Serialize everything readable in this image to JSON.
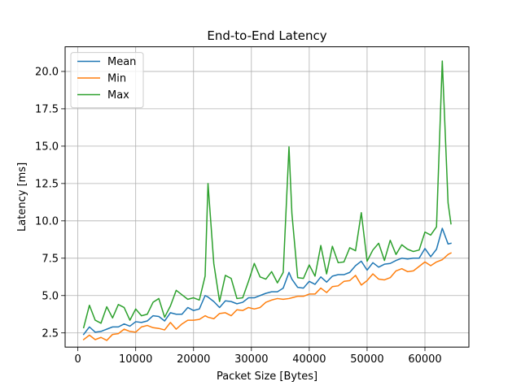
{
  "chart_data": {
    "type": "line",
    "title": "End-to-End Latency",
    "xlabel": "Packet Size [Bytes]",
    "ylabel": "Latency [ms]",
    "xlim": [
      -2200,
      67600
    ],
    "ylim": [
      1.55,
      21.65
    ],
    "xticks": [
      0,
      10000,
      20000,
      30000,
      40000,
      50000,
      60000
    ],
    "xtick_labels": [
      "0",
      "10000",
      "20000",
      "30000",
      "40000",
      "50000",
      "60000"
    ],
    "yticks": [
      2.5,
      5.0,
      7.5,
      10.0,
      12.5,
      15.0,
      17.5,
      20.0
    ],
    "ytick_labels": [
      "2.5",
      "5.0",
      "7.5",
      "10.0",
      "12.5",
      "15.0",
      "17.5",
      "20.0"
    ],
    "grid": true,
    "legend_position": "top-left",
    "x": [
      1000,
      2000,
      3000,
      4000,
      5000,
      6000,
      7000,
      8000,
      9000,
      10000,
      11000,
      12000,
      13000,
      14000,
      15000,
      16000,
      17000,
      18000,
      19000,
      20000,
      21000,
      22000,
      22500,
      23500,
      24500,
      25500,
      26500,
      27500,
      28500,
      29500,
      30500,
      31500,
      32500,
      33500,
      34500,
      35500,
      36500,
      37000,
      38000,
      39000,
      40000,
      41000,
      42000,
      43000,
      44000,
      45000,
      46000,
      47000,
      48000,
      49000,
      50000,
      51000,
      52000,
      53000,
      54000,
      55000,
      56000,
      57000,
      58000,
      59000,
      60000,
      61000,
      62000,
      63000,
      64000,
      64500
    ],
    "series": [
      {
        "name": "Mean",
        "color": "#1f77b4",
        "values": [
          2.4,
          2.9,
          2.55,
          2.6,
          2.75,
          2.9,
          2.9,
          3.1,
          2.95,
          3.25,
          3.2,
          3.3,
          3.65,
          3.6,
          3.3,
          3.85,
          3.75,
          3.75,
          4.2,
          4.0,
          4.1,
          5.0,
          4.9,
          4.6,
          4.2,
          4.65,
          4.6,
          4.45,
          4.55,
          4.85,
          4.85,
          5.0,
          5.15,
          5.25,
          5.25,
          5.5,
          6.55,
          6.1,
          5.55,
          5.5,
          5.95,
          5.75,
          6.25,
          5.9,
          6.3,
          6.4,
          6.4,
          6.55,
          7.0,
          7.3,
          6.7,
          7.2,
          6.9,
          7.1,
          7.15,
          7.35,
          7.5,
          7.45,
          7.5,
          7.5,
          8.15,
          7.6,
          8.1,
          9.5,
          8.45,
          8.5
        ],
        "notes_dummy": ""
      },
      {
        "name": "Min",
        "color": "#ff7f0e",
        "values": [
          2.05,
          2.35,
          2.05,
          2.2,
          2.0,
          2.4,
          2.45,
          2.75,
          2.6,
          2.55,
          2.9,
          3.0,
          2.85,
          2.8,
          2.7,
          3.2,
          2.75,
          3.1,
          3.35,
          3.35,
          3.4,
          3.65,
          3.55,
          3.45,
          3.8,
          3.85,
          3.65,
          4.05,
          4.0,
          4.2,
          4.1,
          4.2,
          4.55,
          4.7,
          4.8,
          4.75,
          4.8,
          4.85,
          4.95,
          4.95,
          5.1,
          5.1,
          5.5,
          5.2,
          5.6,
          5.65,
          5.95,
          6.0,
          6.35,
          5.7,
          6.0,
          6.45,
          6.1,
          6.05,
          6.2,
          6.65,
          6.8,
          6.6,
          6.65,
          6.95,
          7.25,
          7.0,
          7.25,
          7.4,
          7.75,
          7.85
        ],
        "notes_dummy": ""
      },
      {
        "name": "Max",
        "color": "#2ca02c",
        "values": [
          2.85,
          4.35,
          3.35,
          3.15,
          4.25,
          3.5,
          4.4,
          4.2,
          3.35,
          4.1,
          3.65,
          3.75,
          4.55,
          4.8,
          3.55,
          4.3,
          5.35,
          5.05,
          4.75,
          4.85,
          4.7,
          6.3,
          12.5,
          7.15,
          4.6,
          6.35,
          6.15,
          4.8,
          4.85,
          5.95,
          7.15,
          6.25,
          6.1,
          6.6,
          5.85,
          6.55,
          14.95,
          10.5,
          6.2,
          6.15,
          7.05,
          6.3,
          8.35,
          6.45,
          8.3,
          7.2,
          7.25,
          8.2,
          8.0,
          10.55,
          7.3,
          8.05,
          8.5,
          7.35,
          8.7,
          7.75,
          8.4,
          8.1,
          7.95,
          8.05,
          9.25,
          9.05,
          9.6,
          20.7,
          11.2,
          9.8
        ],
        "notes_dummy": ""
      }
    ]
  }
}
